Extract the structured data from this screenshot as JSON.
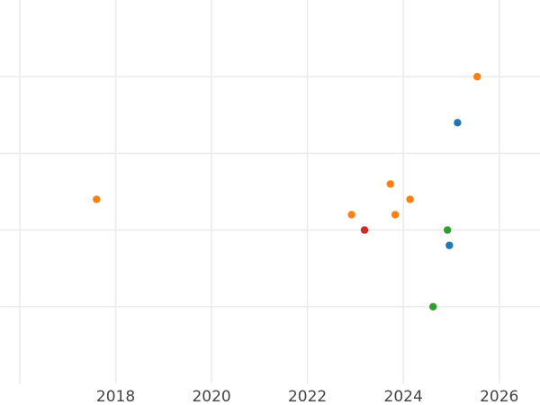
{
  "chart_data": {
    "type": "scatter",
    "title": "",
    "xlabel": "",
    "ylabel": "",
    "xlim": [
      2016.0,
      2026.85
    ],
    "ylim": [
      0.0,
      5.0
    ],
    "x_ticks": [
      2018,
      2020,
      2022,
      2024,
      2026
    ],
    "x_tick_labels": [
      "2018",
      "2020",
      "2022",
      "2024",
      "2026"
    ],
    "x_extra_gridlines": [
      2016.0
    ],
    "y_gridlines": [
      1.0,
      2.0,
      3.0,
      4.0
    ],
    "y_tick_labels_shown": false,
    "grid": true,
    "legend": "none",
    "colors": {
      "blue": "#1f77b4",
      "orange": "#ff7f0e",
      "green": "#2ca02c",
      "red": "#d62728",
      "grid": "#ebebeb",
      "tick_text": "#444444"
    },
    "series": [
      {
        "color": "#ff7f0e",
        "points": [
          {
            "x": 2017.6,
            "y": 2.4
          },
          {
            "x": 2022.92,
            "y": 2.2
          },
          {
            "x": 2023.73,
            "y": 2.6
          },
          {
            "x": 2023.83,
            "y": 2.2
          },
          {
            "x": 2024.14,
            "y": 2.4
          },
          {
            "x": 2025.54,
            "y": 4.0
          }
        ]
      },
      {
        "color": "#1f77b4",
        "points": [
          {
            "x": 2025.13,
            "y": 3.4
          },
          {
            "x": 2024.96,
            "y": 1.8
          }
        ]
      },
      {
        "color": "#2ca02c",
        "points": [
          {
            "x": 2024.92,
            "y": 2.0
          },
          {
            "x": 2024.62,
            "y": 1.0
          }
        ]
      },
      {
        "color": "#d62728",
        "points": [
          {
            "x": 2023.19,
            "y": 2.0
          }
        ]
      }
    ]
  }
}
